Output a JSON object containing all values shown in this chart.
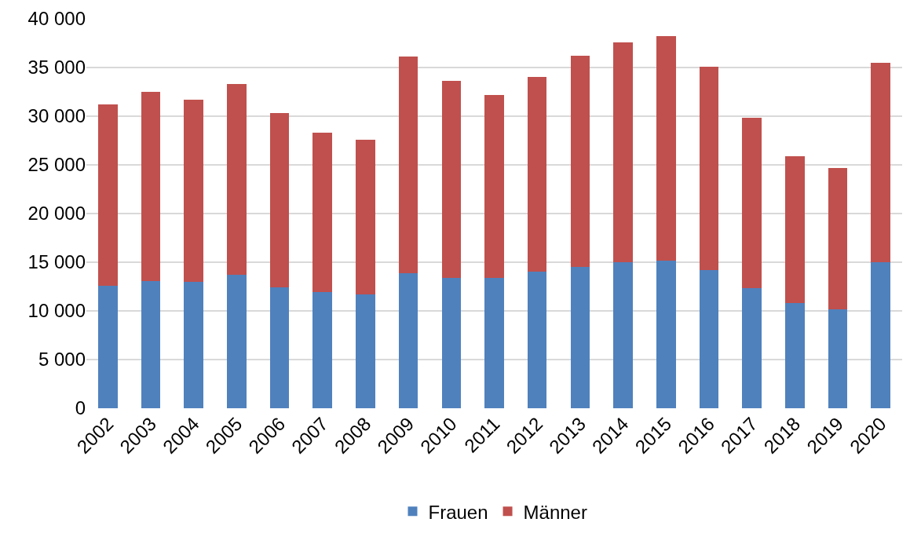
{
  "chart_data": {
    "type": "bar",
    "stacked": true,
    "categories": [
      "2002",
      "2003",
      "2004",
      "2005",
      "2006",
      "2007",
      "2008",
      "2009",
      "2010",
      "2011",
      "2012",
      "2013",
      "2014",
      "2015",
      "2016",
      "2017",
      "2018",
      "2019",
      "2020"
    ],
    "series": [
      {
        "name": "Frauen",
        "color": "#4f81bd",
        "values": [
          12600,
          13100,
          13000,
          13700,
          12400,
          11900,
          11700,
          13900,
          13400,
          13400,
          14000,
          14500,
          15000,
          15200,
          14200,
          12300,
          10800,
          10200,
          15000
        ]
      },
      {
        "name": "Männer",
        "color": "#c0504d",
        "values": [
          18600,
          19400,
          18700,
          19600,
          17900,
          16400,
          15900,
          22200,
          20200,
          18800,
          20000,
          21700,
          22600,
          23000,
          20900,
          17500,
          15100,
          14500,
          20500
        ]
      }
    ],
    "ylim": [
      0,
      40000
    ],
    "yticks": [
      {
        "value": 0,
        "label": "0"
      },
      {
        "value": 5000,
        "label": "5 000"
      },
      {
        "value": 10000,
        "label": "10 000"
      },
      {
        "value": 15000,
        "label": "15 000"
      },
      {
        "value": 20000,
        "label": "20 000"
      },
      {
        "value": 25000,
        "label": "25 000"
      },
      {
        "value": 30000,
        "label": "30 000"
      },
      {
        "value": 35000,
        "label": "35 000"
      },
      {
        "value": 40000,
        "label": "40 000"
      }
    ],
    "grid": "y",
    "legend": "bottom"
  }
}
